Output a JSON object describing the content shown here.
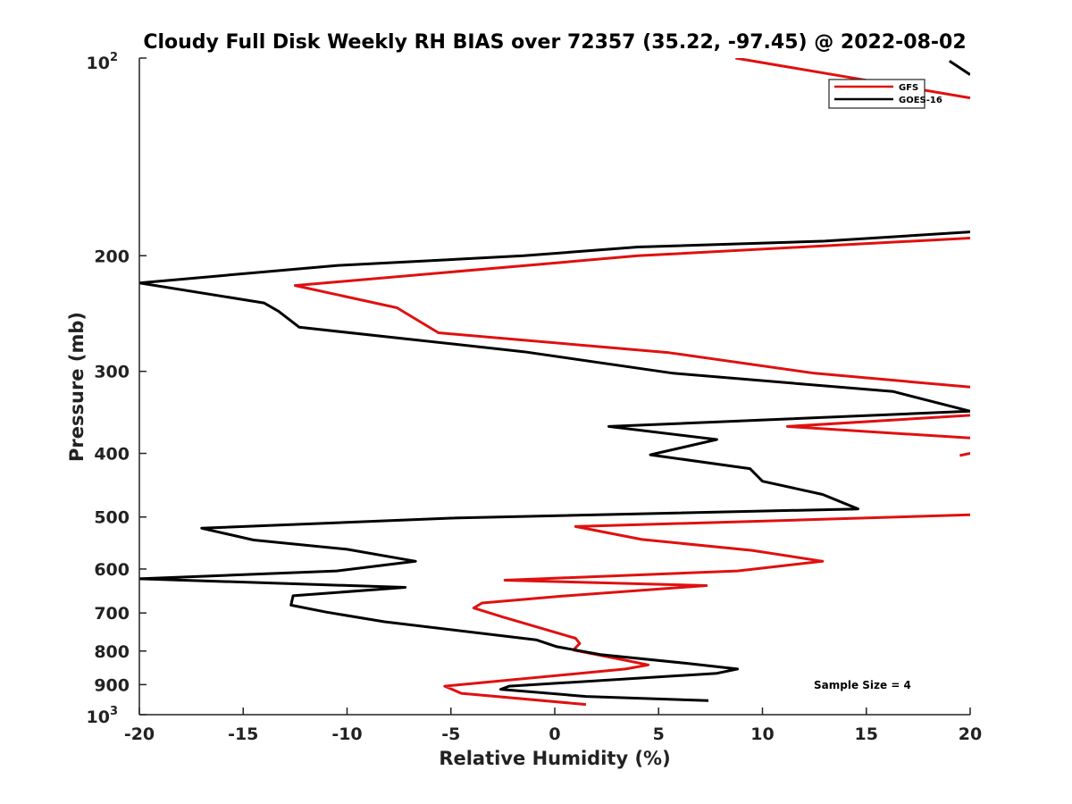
{
  "chart_data": {
    "type": "line",
    "title": "Cloudy Full Disk Weekly RH BIAS over 72357 (35.22, -97.45) @ 2022-08-02",
    "xlabel": "Relative Humidity (%)",
    "ylabel": "Pressure (mb)",
    "xlim": [
      -20,
      20
    ],
    "ylim": [
      100,
      1000
    ],
    "y_scale": "log",
    "y_reversed": true,
    "grid": false,
    "x_ticks": [
      -20,
      -15,
      -10,
      -5,
      0,
      5,
      10,
      15,
      20
    ],
    "x_tick_labels": [
      "-20",
      "-15",
      "-10",
      "-5",
      "0",
      "5",
      "10",
      "15",
      "20"
    ],
    "y_ticks": [
      200,
      300,
      400,
      500,
      600,
      700,
      800,
      900
    ],
    "y_tick_labels": [
      "200",
      "300",
      "400",
      "500",
      "600",
      "700",
      "800",
      "900"
    ],
    "y_top_label": {
      "base": "10",
      "exp": "2"
    },
    "y_bottom_label": {
      "base": "10",
      "exp": "3"
    },
    "legend_position": "top-right",
    "annotation": "Sample Size = 4",
    "series": [
      {
        "name": "GFS",
        "color": "#e01010",
        "segments": [
          [
            [
              8.7,
              100
            ],
            [
              20,
              115
            ]
          ],
          [
            [
              20,
              188
            ],
            [
              4.0,
              200
            ],
            [
              -12.5,
              222
            ],
            [
              -7.6,
              240
            ],
            [
              -5.6,
              262
            ],
            [
              5.5,
              281
            ],
            [
              12.5,
              302
            ],
            [
              20,
              317
            ]
          ],
          [
            [
              20,
              350
            ],
            [
              11.2,
              364
            ],
            [
              20,
              379
            ]
          ],
          [
            [
              20,
              400
            ],
            [
              19.5,
              403
            ]
          ],
          [
            [
              20,
              496
            ],
            [
              12.0,
              505
            ],
            [
              1.0,
              517
            ],
            [
              4.2,
              541
            ],
            [
              9.5,
              562
            ],
            [
              12.9,
              584
            ],
            [
              8.8,
              604
            ],
            [
              -2.4,
              624
            ],
            [
              7.3,
              636
            ],
            [
              0.3,
              660
            ],
            [
              -3.5,
              676
            ],
            [
              -3.9,
              688
            ],
            [
              -2.5,
              710
            ],
            [
              1.0,
              765
            ],
            [
              1.2,
              779
            ],
            [
              0.9,
              797
            ],
            [
              3.3,
              825
            ],
            [
              4.5,
              840
            ],
            [
              3.4,
              852
            ],
            [
              -5.3,
              905
            ],
            [
              -4.5,
              928
            ],
            [
              1.5,
              965
            ]
          ]
        ]
      },
      {
        "name": "GOES-16",
        "color": "#000000",
        "segments": [
          [
            [
              19.0,
              101
            ],
            [
              20,
              106
            ]
          ],
          [
            [
              20,
              184
            ],
            [
              13.0,
              190
            ],
            [
              4.0,
              194
            ],
            [
              -1.5,
              200
            ],
            [
              -10.5,
              207
            ],
            [
              -20,
              220
            ],
            [
              -14.0,
              236
            ],
            [
              -13.3,
              243
            ],
            [
              -12.3,
              257
            ],
            [
              -1.5,
              280
            ],
            [
              5.7,
              302
            ],
            [
              16.3,
              322
            ],
            [
              20,
              345
            ],
            [
              2.6,
              364
            ],
            [
              7.8,
              381
            ],
            [
              4.6,
              402
            ],
            [
              9.4,
              422
            ],
            [
              10.0,
              441
            ],
            [
              12.9,
              462
            ],
            [
              14.6,
              486
            ],
            [
              -5.0,
              502
            ],
            [
              -17.0,
              520
            ],
            [
              -14.5,
              542
            ],
            [
              -10.0,
              560
            ],
            [
              -6.7,
              584
            ],
            [
              -10.5,
              604
            ],
            [
              -20,
              621
            ],
            [
              -7.2,
              640
            ],
            [
              -12.6,
              659
            ],
            [
              -12.7,
              681
            ],
            [
              -11.0,
              698
            ],
            [
              -8.2,
              722
            ],
            [
              -0.9,
              769
            ],
            [
              0.1,
              788
            ],
            [
              2.2,
              810
            ],
            [
              6.3,
              835
            ],
            [
              8.8,
              852
            ],
            [
              7.8,
              865
            ],
            [
              -2.2,
              905
            ],
            [
              -2.6,
              915
            ],
            [
              1.5,
              938
            ],
            [
              7.4,
              952
            ]
          ]
        ]
      }
    ]
  }
}
